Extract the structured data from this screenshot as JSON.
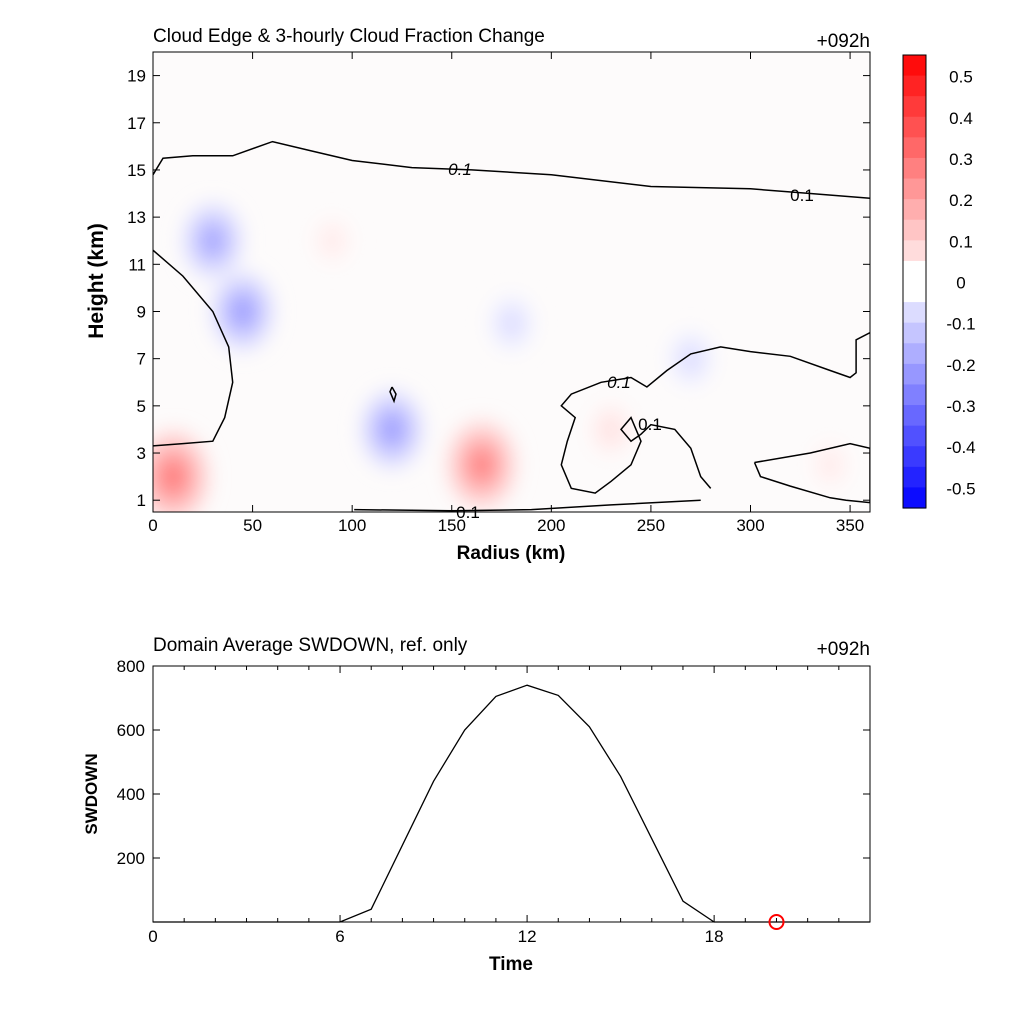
{
  "chart_data": [
    {
      "type": "heatmap",
      "title": "Cloud Edge & 3-hourly Cloud Fraction Change",
      "time_label": "+092h",
      "xlabel": "Radius (km)",
      "ylabel": "Height (km)",
      "xlim": [
        0,
        360
      ],
      "ylim": [
        0.5,
        20
      ],
      "xticks": [
        "0",
        "50",
        "100",
        "150",
        "200",
        "250",
        "300",
        "350"
      ],
      "yticks": [
        "1",
        "3",
        "5",
        "7",
        "9",
        "11",
        "13",
        "15",
        "17",
        "19"
      ],
      "colorbar": {
        "range": [
          -0.55,
          0.55
        ],
        "step": 0.05,
        "tick_labels": [
          "0.5",
          "0.4",
          "0.3",
          "0.2",
          "0.1",
          "0",
          "-0.1",
          "-0.2",
          "-0.3",
          "-0.4",
          "-0.5"
        ],
        "low_color": "#0000ff",
        "mid_color": "#ffffff",
        "high_color": "#ff0000"
      },
      "contour_level_label": "0.1",
      "anomalies": [
        {
          "x": 30,
          "y": 12.0,
          "value": -0.2
        },
        {
          "x": 45,
          "y": 9.0,
          "value": -0.22
        },
        {
          "x": 120,
          "y": 4.0,
          "value": -0.22
        },
        {
          "x": 165,
          "y": 2.5,
          "value": 0.28
        },
        {
          "x": 10,
          "y": 2.0,
          "value": 0.3
        },
        {
          "x": 180,
          "y": 8.5,
          "value": -0.08
        },
        {
          "x": 270,
          "y": 7.0,
          "value": -0.08
        },
        {
          "x": 90,
          "y": 12.0,
          "value": 0.05
        },
        {
          "x": 230,
          "y": 4.0,
          "value": 0.07
        },
        {
          "x": 340,
          "y": 2.5,
          "value": 0.05
        }
      ],
      "contours": [
        [
          [
            0,
            14.8
          ],
          [
            5,
            15.5
          ],
          [
            20,
            15.6
          ],
          [
            40,
            15.6
          ],
          [
            60,
            16.2
          ],
          [
            80,
            15.8
          ],
          [
            100,
            15.4
          ],
          [
            130,
            15.1
          ],
          [
            160,
            15.0
          ],
          [
            200,
            14.8
          ],
          [
            250,
            14.3
          ],
          [
            300,
            14.2
          ],
          [
            330,
            14.0
          ],
          [
            360,
            13.8
          ]
        ],
        [
          [
            0,
            11.6
          ],
          [
            15,
            10.5
          ],
          [
            30,
            9.0
          ],
          [
            38,
            7.5
          ],
          [
            40,
            6.0
          ],
          [
            36,
            4.5
          ],
          [
            30,
            3.5
          ],
          [
            15,
            3.4
          ],
          [
            0,
            3.3
          ]
        ],
        [
          [
            101,
            0.6
          ],
          [
            150,
            0.55
          ],
          [
            190,
            0.6
          ],
          [
            230,
            0.8
          ],
          [
            275,
            1.0
          ]
        ],
        [
          [
            280,
            1.5
          ],
          [
            275,
            2.0
          ],
          [
            270,
            3.2
          ],
          [
            262,
            4.0
          ],
          [
            250,
            4.2
          ],
          [
            245,
            3.8
          ],
          [
            240,
            3.5
          ],
          [
            235,
            4.0
          ],
          [
            240,
            4.5
          ],
          [
            245,
            3.5
          ],
          [
            240,
            2.5
          ],
          [
            230,
            1.8
          ],
          [
            222,
            1.3
          ],
          [
            210,
            1.5
          ],
          [
            205,
            2.5
          ],
          [
            208,
            3.5
          ],
          [
            212,
            4.5
          ],
          [
            205,
            5.0
          ],
          [
            210,
            5.5
          ],
          [
            225,
            6.0
          ],
          [
            240,
            6.2
          ],
          [
            248,
            5.8
          ],
          [
            258,
            6.5
          ],
          [
            270,
            7.2
          ],
          [
            285,
            7.5
          ],
          [
            300,
            7.3
          ],
          [
            320,
            7.1
          ],
          [
            340,
            6.5
          ],
          [
            350,
            6.2
          ],
          [
            353,
            6.4
          ],
          [
            353,
            7.8
          ],
          [
            360,
            8.1
          ]
        ],
        [
          [
            120,
            5.8
          ],
          [
            122,
            5.5
          ],
          [
            121,
            5.2
          ],
          [
            119,
            5.6
          ],
          [
            120,
            5.8
          ]
        ],
        [
          [
            302,
            2.6
          ],
          [
            330,
            3.0
          ],
          [
            350,
            3.4
          ],
          [
            360,
            3.2
          ],
          [
            360,
            0.9
          ],
          [
            348,
            1.0
          ],
          [
            340,
            1.1
          ],
          [
            320,
            1.6
          ],
          [
            305,
            2.0
          ],
          [
            302,
            2.6
          ]
        ]
      ]
    },
    {
      "type": "line",
      "title": "Domain Average SWDOWN, ref. only",
      "time_label": "+092h",
      "xlabel": "Time",
      "ylabel": "SWDOWN",
      "xlim": [
        0,
        23
      ],
      "ylim": [
        0,
        800
      ],
      "xticks": [
        "0",
        "6",
        "12",
        "18"
      ],
      "yticks": [
        "200",
        "400",
        "600",
        "800"
      ],
      "x": [
        0,
        1,
        2,
        3,
        4,
        5,
        6,
        7,
        8,
        9,
        10,
        11,
        12,
        13,
        14,
        15,
        16,
        17,
        18,
        19,
        20,
        21,
        22,
        23
      ],
      "y": [
        0,
        0,
        0,
        0,
        0,
        0,
        0,
        40,
        240,
        440,
        600,
        705,
        740,
        708,
        610,
        455,
        260,
        65,
        0,
        0,
        0,
        0,
        0,
        0
      ],
      "marker": {
        "x": 20,
        "y": 0,
        "color": "#ff0000"
      }
    }
  ]
}
